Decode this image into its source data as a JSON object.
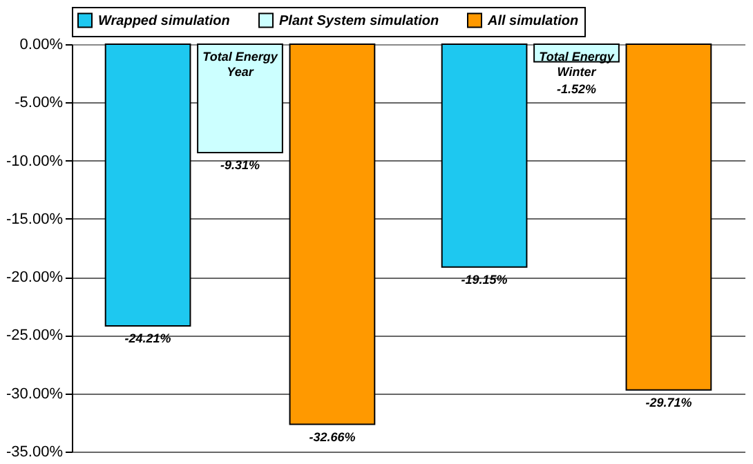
{
  "chart_data": {
    "type": "bar",
    "categories": [
      "Total Energy Year",
      "Total Energy Winter"
    ],
    "series": [
      {
        "name": "Wrapped simulation",
        "color": "#1ec8f0",
        "values": [
          -24.21,
          -19.15
        ],
        "value_labels": [
          "-24.21%",
          "-19.15%"
        ]
      },
      {
        "name": "Plant System simulation",
        "color": "#ccffff",
        "values": [
          -9.31,
          -1.52
        ],
        "value_labels": [
          "-9.31%",
          "-1.52%"
        ]
      },
      {
        "name": "All simulation",
        "color": "#ff9900",
        "values": [
          -32.66,
          -29.71
        ],
        "value_labels": [
          "-32.66%",
          "-29.71%"
        ]
      }
    ],
    "ylim": [
      -35,
      0
    ],
    "yticks": [
      {
        "value": 0,
        "label": "0.00%"
      },
      {
        "value": -5,
        "label": "-5.00%"
      },
      {
        "value": -10,
        "label": "-10.00%"
      },
      {
        "value": -15,
        "label": "-15.00%"
      },
      {
        "value": -20,
        "label": "-20.00%"
      },
      {
        "value": -25,
        "label": "-25.00%"
      },
      {
        "value": -30,
        "label": "-30.00%"
      },
      {
        "value": -35,
        "label": "-35.00%"
      }
    ],
    "grid": "y",
    "legend": "top",
    "tick_labels": "y"
  }
}
